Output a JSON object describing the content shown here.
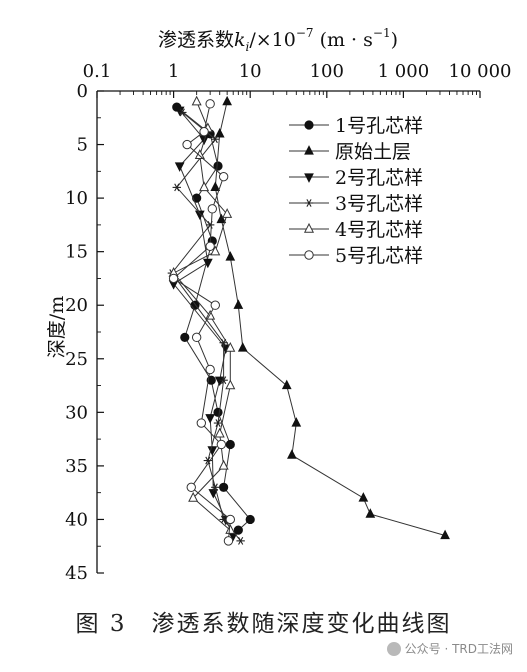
{
  "chart_data": {
    "type": "line",
    "x_title_prefix": "渗透系数",
    "x_title_k": "k",
    "x_title_i": "i",
    "x_title_mid": "/×10",
    "x_title_exp": "−7",
    "x_title_unit_open": " (m · s",
    "x_title_unit_exp": "−1",
    "x_title_unit_close": ")",
    "ylabel": "深度/m",
    "x_scale": "log",
    "xlim": [
      0.1,
      10000
    ],
    "ylim": [
      0,
      45
    ],
    "x_ticks": [
      {
        "value": 0.1,
        "label": "0.1"
      },
      {
        "value": 1,
        "label": "1"
      },
      {
        "value": 10,
        "label": "10"
      },
      {
        "value": 100,
        "label": "100"
      },
      {
        "value": 1000,
        "label": "1 000"
      },
      {
        "value": 10000,
        "label": "10 000"
      }
    ],
    "y_ticks": [
      0,
      5,
      10,
      15,
      20,
      25,
      30,
      35,
      40,
      45
    ],
    "legend_position": "top-right",
    "series": [
      {
        "name": "1号孔芯样",
        "marker": "filled-circle",
        "points": [
          [
            1.1,
            1.5
          ],
          [
            3.0,
            4.0
          ],
          [
            3.8,
            7.0
          ],
          [
            2.0,
            10.0
          ],
          [
            3.2,
            14.0
          ],
          [
            1.9,
            20.0
          ],
          [
            1.4,
            23.0
          ],
          [
            3.1,
            27.0
          ],
          [
            3.8,
            30.0
          ],
          [
            5.5,
            33.0
          ],
          [
            4.5,
            37.0
          ],
          [
            10.0,
            40.0
          ],
          [
            7.0,
            41.0
          ]
        ]
      },
      {
        "name": "原始土层",
        "marker": "filled-triangle",
        "points": [
          [
            5.0,
            1.0
          ],
          [
            4.0,
            4.0
          ],
          [
            3.5,
            9.0
          ],
          [
            4.2,
            12.0
          ],
          [
            5.5,
            15.5
          ],
          [
            7.0,
            20.0
          ],
          [
            8.0,
            24.0
          ],
          [
            30.0,
            27.5
          ],
          [
            40.0,
            31.0
          ],
          [
            35.0,
            34.0
          ],
          [
            300.0,
            38.0
          ],
          [
            370.0,
            39.5
          ],
          [
            3500.0,
            41.5
          ]
        ]
      },
      {
        "name": "2号孔芯样",
        "marker": "filled-down-triangle",
        "points": [
          [
            1.2,
            1.8
          ],
          [
            2.5,
            4.5
          ],
          [
            1.2,
            7.0
          ],
          [
            2.2,
            11.5
          ],
          [
            2.8,
            16.0
          ],
          [
            1.0,
            18.0
          ],
          [
            4.8,
            24.0
          ],
          [
            4.0,
            27.0
          ],
          [
            3.0,
            30.5
          ],
          [
            3.2,
            33.5
          ],
          [
            3.3,
            37.5
          ],
          [
            4.8,
            40.0
          ],
          [
            6.0,
            41.5
          ]
        ]
      },
      {
        "name": "3号孔芯样",
        "marker": "asterisk",
        "points": [
          [
            1.3,
            2.0
          ],
          [
            3.5,
            4.5
          ],
          [
            1.1,
            9.0
          ],
          [
            3.0,
            12.5
          ],
          [
            0.95,
            17.0
          ],
          [
            4.5,
            23.5
          ],
          [
            4.5,
            27.0
          ],
          [
            3.8,
            31.0
          ],
          [
            2.8,
            34.5
          ],
          [
            3.5,
            37.0
          ],
          [
            4.5,
            40.0
          ],
          [
            7.5,
            42.0
          ]
        ]
      },
      {
        "name": "4号孔芯样",
        "marker": "open-triangle",
        "points": [
          [
            2.0,
            1.0
          ],
          [
            2.8,
            3.5
          ],
          [
            2.2,
            6.0
          ],
          [
            2.5,
            9.0
          ],
          [
            5.0,
            11.5
          ],
          [
            3.5,
            15.0
          ],
          [
            1.0,
            17.0
          ],
          [
            3.0,
            21.0
          ],
          [
            5.5,
            24.0
          ],
          [
            5.5,
            27.5
          ],
          [
            4.0,
            32.0
          ],
          [
            4.5,
            35.0
          ],
          [
            1.8,
            38.0
          ],
          [
            5.5,
            41.0
          ]
        ]
      },
      {
        "name": "5号孔芯样",
        "marker": "open-circle",
        "points": [
          [
            3.0,
            1.2
          ],
          [
            2.5,
            3.8
          ],
          [
            1.5,
            5.0
          ],
          [
            4.5,
            8.0
          ],
          [
            3.2,
            11.0
          ],
          [
            3.0,
            14.5
          ],
          [
            1.0,
            17.5
          ],
          [
            3.5,
            20.0
          ],
          [
            2.0,
            23.0
          ],
          [
            3.0,
            26.0
          ],
          [
            2.3,
            31.0
          ],
          [
            4.2,
            33.0
          ],
          [
            1.7,
            37.0
          ],
          [
            5.5,
            40.0
          ],
          [
            5.2,
            42.0
          ]
        ]
      }
    ]
  },
  "caption": "图 3　渗透系数随深度变化曲线图",
  "watermark": {
    "text": "公众号 · TRD工法网"
  }
}
